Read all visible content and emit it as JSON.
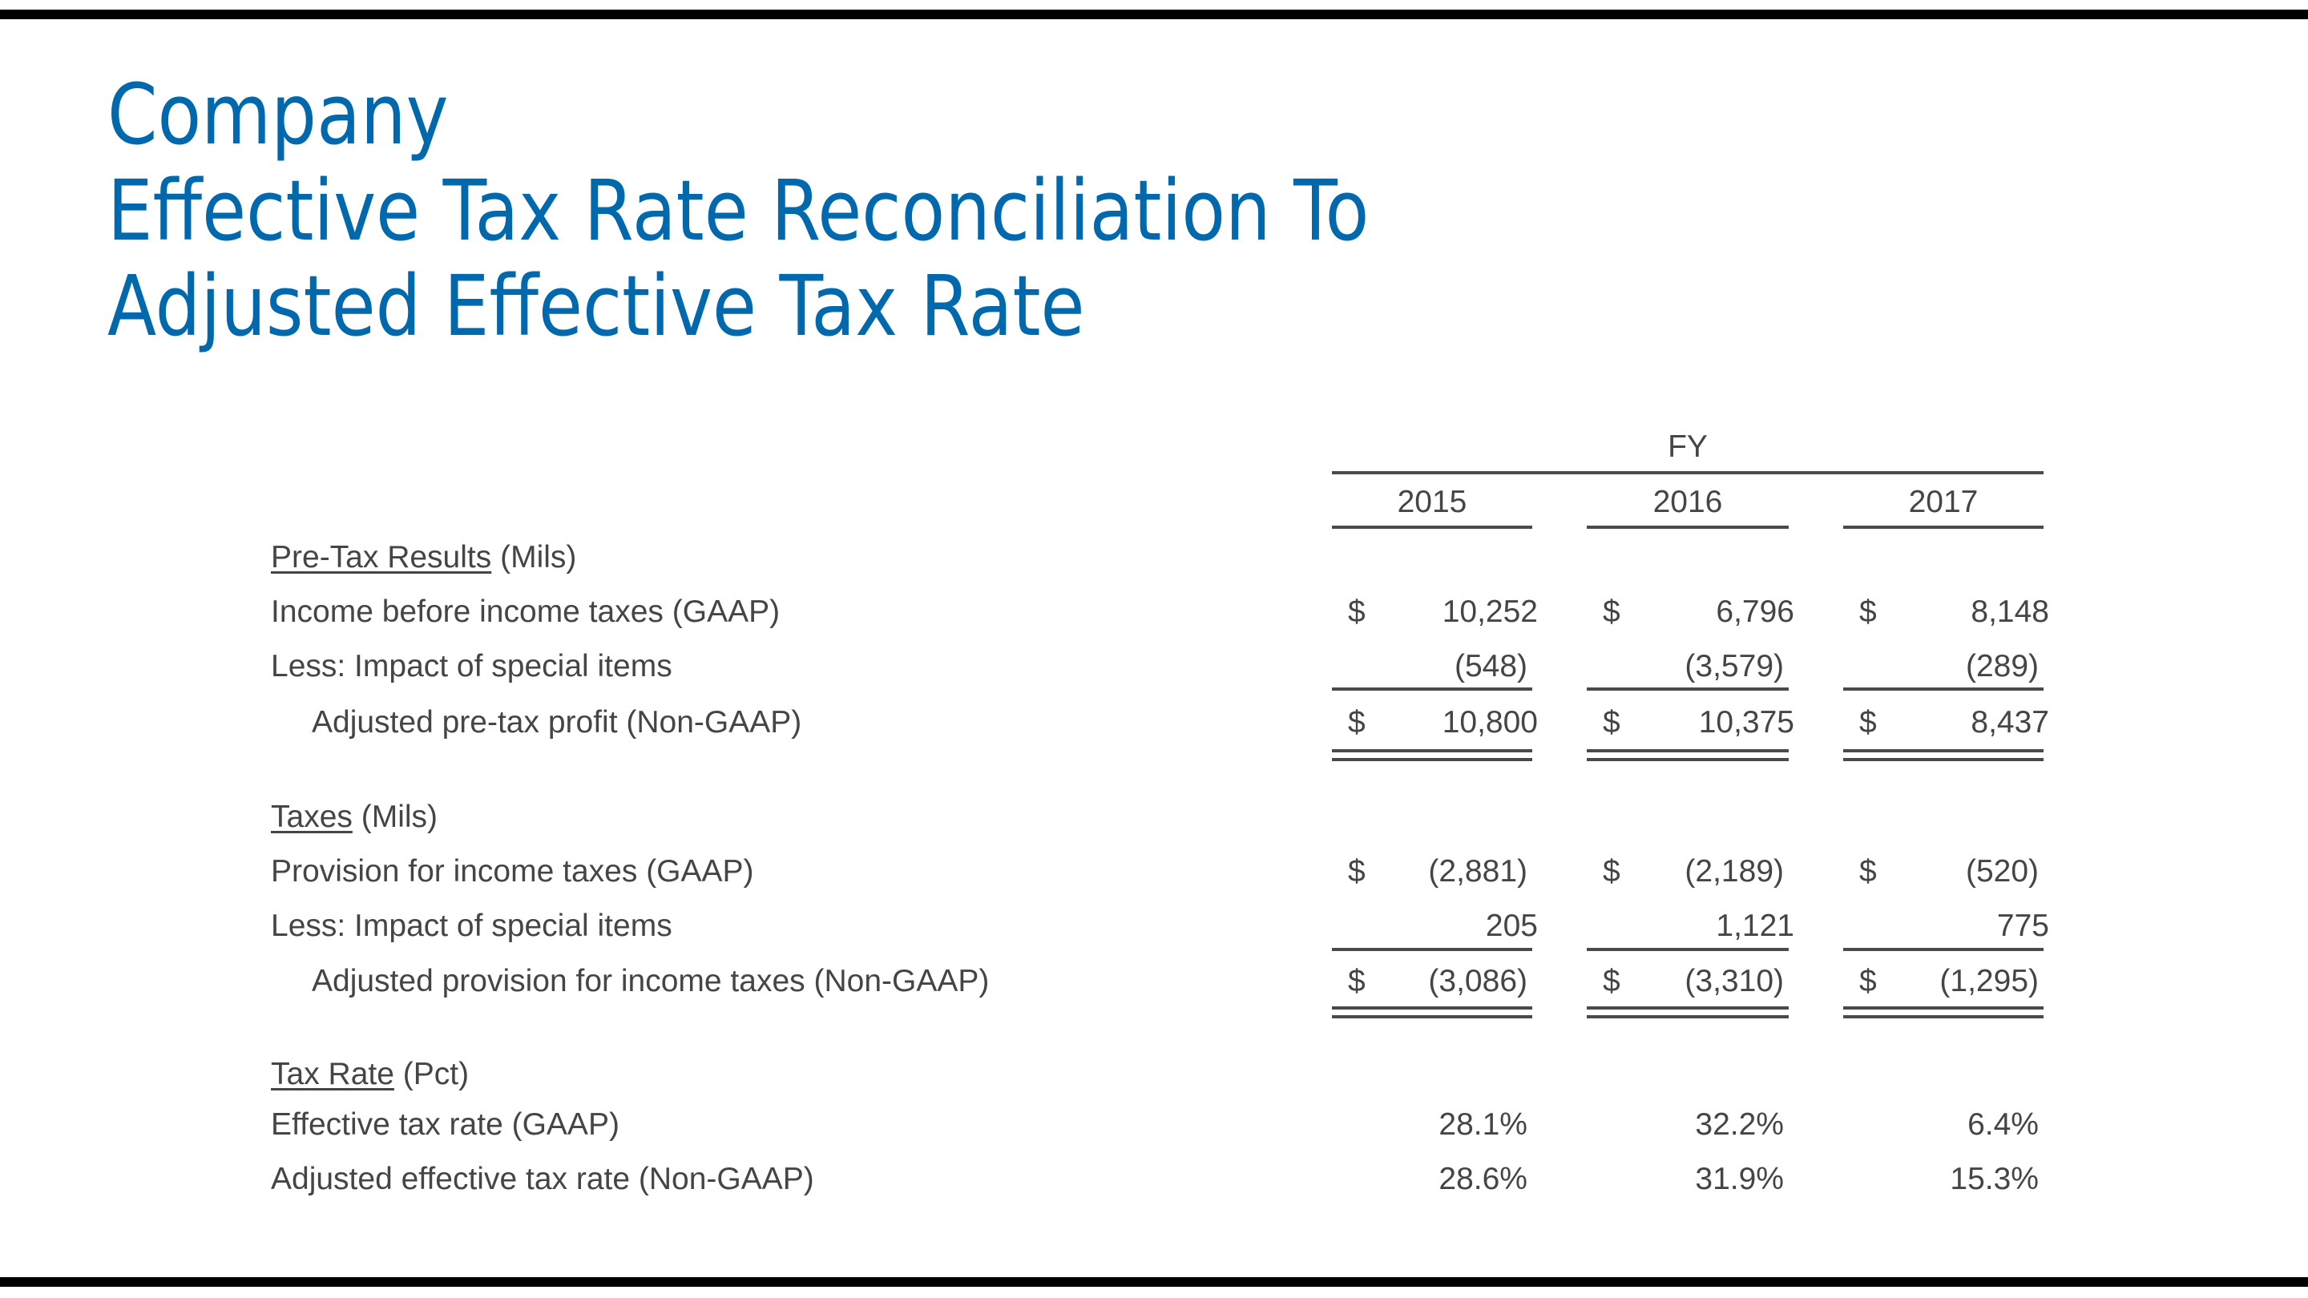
{
  "title": {
    "line1": "Company",
    "line2": "Effective Tax Rate Reconciliation To",
    "line3": "Adjusted Effective Tax Rate"
  },
  "colors": {
    "title": "#0068ad",
    "text": "#454545"
  },
  "table": {
    "group_header": "FY",
    "years": [
      "2015",
      "2016",
      "2017"
    ],
    "sections": [
      {
        "heading": "Pre-Tax Results",
        "unit": "(Mils)",
        "rows": [
          {
            "label": "Income before income taxes (GAAP)",
            "values": [
              {
                "dollar": "$",
                "v": "10,252"
              },
              {
                "dollar": "$",
                "v": "6,796"
              },
              {
                "dollar": "$",
                "v": "8,148"
              }
            ]
          },
          {
            "label": "Less:  Impact of special items",
            "values": [
              {
                "dollar": "",
                "v": "(548)"
              },
              {
                "dollar": "",
                "v": "(3,579)"
              },
              {
                "dollar": "",
                "v": "(289)"
              }
            ]
          },
          {
            "label": "Adjusted pre-tax profit (Non-GAAP)",
            "values": [
              {
                "dollar": "$",
                "v": "10,800"
              },
              {
                "dollar": "$",
                "v": "10,375"
              },
              {
                "dollar": "$",
                "v": "8,437"
              }
            ]
          }
        ]
      },
      {
        "heading": "Taxes",
        "unit": "(Mils)",
        "rows": [
          {
            "label": "Provision for income taxes (GAAP)",
            "values": [
              {
                "dollar": "$",
                "v": "(2,881)"
              },
              {
                "dollar": "$",
                "v": "(2,189)"
              },
              {
                "dollar": "$",
                "v": "(520)"
              }
            ]
          },
          {
            "label": "Less:  Impact of special items",
            "values": [
              {
                "dollar": "",
                "v": "205"
              },
              {
                "dollar": "",
                "v": "1,121"
              },
              {
                "dollar": "",
                "v": "775"
              }
            ]
          },
          {
            "label": "Adjusted provision for income taxes (Non-GAAP)",
            "values": [
              {
                "dollar": "$",
                "v": "(3,086)"
              },
              {
                "dollar": "$",
                "v": "(3,310)"
              },
              {
                "dollar": "$",
                "v": "(1,295)"
              }
            ]
          }
        ]
      },
      {
        "heading": "Tax Rate",
        "unit": "(Pct)",
        "rows": [
          {
            "label": "Effective tax rate (GAAP)",
            "values": [
              {
                "dollar": "",
                "v": "28.1%"
              },
              {
                "dollar": "",
                "v": "32.2%"
              },
              {
                "dollar": "",
                "v": "6.4%"
              }
            ]
          },
          {
            "label": "Adjusted effective tax rate (Non-GAAP)",
            "values": [
              {
                "dollar": "",
                "v": "28.6%"
              },
              {
                "dollar": "",
                "v": "31.9%"
              },
              {
                "dollar": "",
                "v": "15.3%"
              }
            ]
          }
        ]
      }
    ]
  }
}
